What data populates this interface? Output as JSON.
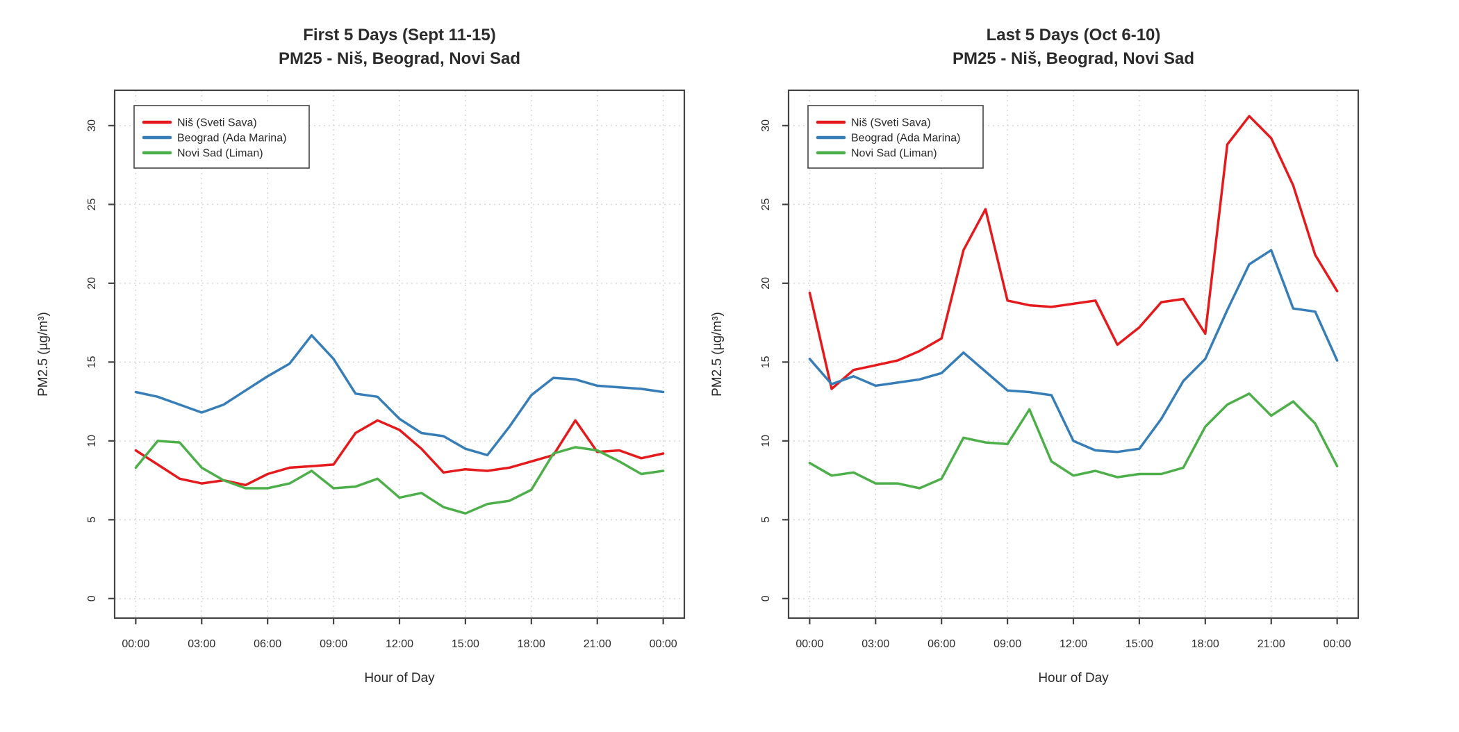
{
  "figure": {
    "background": "#ffffff",
    "axis_color": "#444444",
    "grid_color": "#d6d6d6",
    "text_color": "#2b2b2b"
  },
  "chart_data": [
    {
      "type": "line",
      "title_line1": "First 5 Days (Sept 11-15)",
      "title_line2": "PM25 - Niš, Beograd, Novi Sad",
      "xlabel": "Hour of Day",
      "ylabel": "PM2.5 (µg/m³)",
      "x_tick_labels": [
        "00:00",
        "03:00",
        "06:00",
        "09:00",
        "12:00",
        "15:00",
        "18:00",
        "21:00",
        "00:00"
      ],
      "x_tick_hours": [
        0,
        3,
        6,
        9,
        12,
        15,
        18,
        21,
        24
      ],
      "y_ticks": [
        "0",
        "5",
        "10",
        "15",
        "20",
        "25",
        "30"
      ],
      "ylim": [
        0,
        31
      ],
      "grid": true,
      "legend_position": "top-left",
      "hours": [
        0,
        1,
        2,
        3,
        4,
        5,
        6,
        7,
        8,
        9,
        10,
        11,
        12,
        13,
        14,
        15,
        16,
        17,
        18,
        19,
        20,
        21,
        22,
        23,
        24
      ],
      "series": [
        {
          "name": "Niš (Sveti Sava)",
          "color": "#E41A1C",
          "values": [
            9.4,
            8.5,
            7.6,
            7.3,
            7.5,
            7.2,
            7.9,
            8.3,
            8.4,
            8.5,
            10.5,
            11.3,
            10.7,
            9.5,
            8.0,
            8.2,
            8.1,
            8.3,
            8.7,
            9.1,
            11.3,
            9.3,
            9.4,
            8.9,
            9.2
          ]
        },
        {
          "name": "Beograd (Ada Marina)",
          "color": "#377EB8",
          "values": [
            13.1,
            12.8,
            12.3,
            11.8,
            12.3,
            13.2,
            14.1,
            14.9,
            16.7,
            15.2,
            13.0,
            12.8,
            11.4,
            10.5,
            10.3,
            9.5,
            9.1,
            10.9,
            12.9,
            14.0,
            13.9,
            13.5,
            13.4,
            13.3,
            13.1
          ]
        },
        {
          "name": "Novi Sad (Liman)",
          "color": "#4DAF4A",
          "values": [
            8.3,
            10.0,
            9.9,
            8.3,
            7.5,
            7.0,
            7.0,
            7.3,
            8.1,
            7.0,
            7.1,
            7.6,
            6.4,
            6.7,
            5.8,
            5.4,
            6.0,
            6.2,
            6.9,
            9.2,
            9.6,
            9.4,
            8.7,
            7.9,
            8.1
          ]
        }
      ]
    },
    {
      "type": "line",
      "title_line1": "Last 5 Days (Oct 6-10)",
      "title_line2": "PM25 - Niš, Beograd, Novi Sad",
      "xlabel": "Hour of Day",
      "ylabel": "PM2.5 (µg/m³)",
      "x_tick_labels": [
        "00:00",
        "03:00",
        "06:00",
        "09:00",
        "12:00",
        "15:00",
        "18:00",
        "21:00",
        "00:00"
      ],
      "x_tick_hours": [
        0,
        3,
        6,
        9,
        12,
        15,
        18,
        21,
        24
      ],
      "y_ticks": [
        "0",
        "5",
        "10",
        "15",
        "20",
        "25",
        "30"
      ],
      "ylim": [
        0,
        31
      ],
      "grid": true,
      "legend_position": "top-left",
      "hours": [
        0,
        1,
        2,
        3,
        4,
        5,
        6,
        7,
        8,
        9,
        10,
        11,
        12,
        13,
        14,
        15,
        16,
        17,
        18,
        19,
        20,
        21,
        22,
        23,
        24
      ],
      "series": [
        {
          "name": "Niš (Sveti Sava)",
          "color": "#E41A1C",
          "values": [
            19.4,
            13.3,
            14.5,
            14.8,
            15.1,
            15.7,
            16.5,
            22.1,
            24.7,
            18.9,
            18.6,
            18.5,
            18.7,
            18.9,
            16.1,
            17.2,
            18.8,
            19.0,
            16.8,
            28.8,
            30.6,
            29.2,
            26.2,
            21.8,
            19.5
          ]
        },
        {
          "name": "Beograd (Ada Marina)",
          "color": "#377EB8",
          "values": [
            15.2,
            13.6,
            14.1,
            13.5,
            13.7,
            13.9,
            14.3,
            15.6,
            14.4,
            13.2,
            13.1,
            12.9,
            10.0,
            9.4,
            9.3,
            9.5,
            11.4,
            13.8,
            15.2,
            18.3,
            21.2,
            22.1,
            18.4,
            18.2,
            15.1
          ]
        },
        {
          "name": "Novi Sad (Liman)",
          "color": "#4DAF4A",
          "values": [
            8.6,
            7.8,
            8.0,
            7.3,
            7.3,
            7.0,
            7.6,
            10.2,
            9.9,
            9.8,
            12.0,
            8.7,
            7.8,
            8.1,
            7.7,
            7.9,
            7.9,
            8.3,
            10.9,
            12.3,
            13.0,
            11.6,
            12.5,
            11.1,
            8.4
          ]
        }
      ]
    }
  ]
}
